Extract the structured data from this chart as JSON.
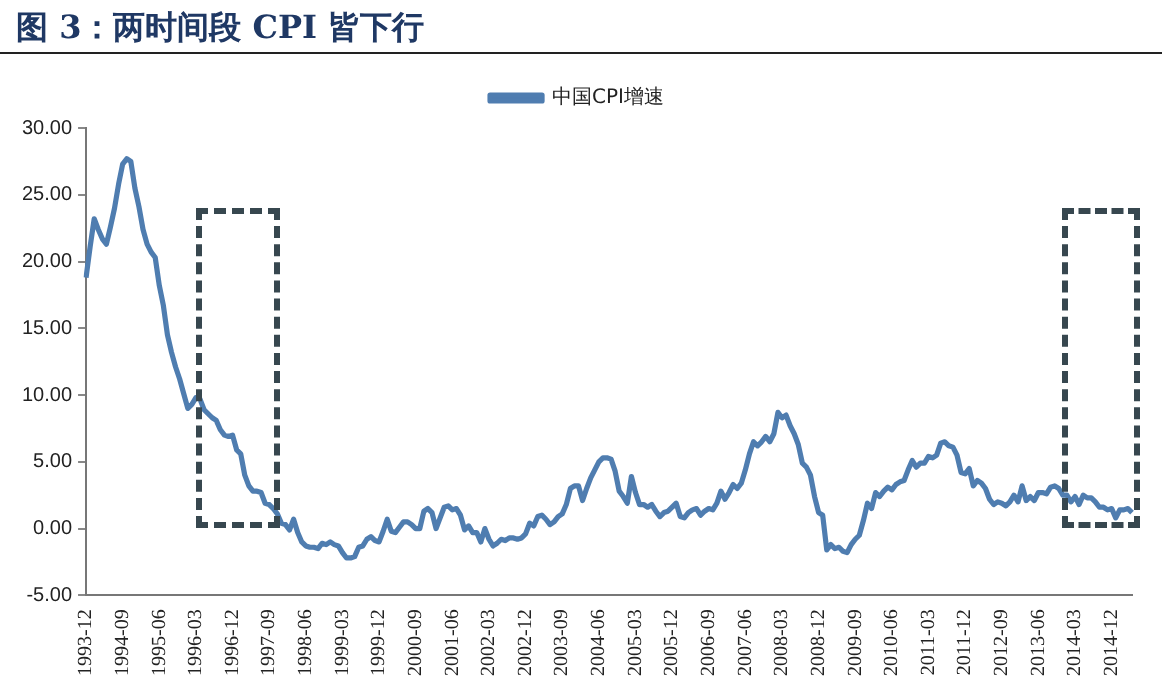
{
  "chart_data": {
    "type": "line",
    "title": "图 3：两时间段 CPI 皆下行",
    "legend": "top",
    "marker": "none",
    "line_style": "solid",
    "grid": false,
    "categories": [
      "1993-12",
      null,
      null,
      null,
      null,
      null,
      null,
      null,
      null,
      "1994-09",
      null,
      null,
      null,
      null,
      null,
      null,
      null,
      null,
      "1995-06",
      null,
      null,
      null,
      null,
      null,
      null,
      null,
      null,
      "1996-03",
      null,
      null,
      null,
      null,
      null,
      null,
      null,
      null,
      "1996-12",
      null,
      null,
      null,
      null,
      null,
      null,
      null,
      null,
      "1997-09",
      null,
      null,
      null,
      null,
      null,
      null,
      null,
      null,
      "1998-06",
      null,
      null,
      null,
      null,
      null,
      null,
      null,
      null,
      "1999-03",
      null,
      null,
      null,
      null,
      null,
      null,
      null,
      null,
      "1999-12",
      null,
      null,
      null,
      null,
      null,
      null,
      null,
      null,
      "2000-09",
      null,
      null,
      null,
      null,
      null,
      null,
      null,
      null,
      "2001-06",
      null,
      null,
      null,
      null,
      null,
      null,
      null,
      null,
      "2002-03",
      null,
      null,
      null,
      null,
      null,
      null,
      null,
      null,
      "2002-12",
      null,
      null,
      null,
      null,
      null,
      null,
      null,
      null,
      "2003-09",
      null,
      null,
      null,
      null,
      null,
      null,
      null,
      null,
      "2004-06",
      null,
      null,
      null,
      null,
      null,
      null,
      null,
      null,
      "2005-03",
      null,
      null,
      null,
      null,
      null,
      null,
      null,
      null,
      "2005-12",
      null,
      null,
      null,
      null,
      null,
      null,
      null,
      null,
      "2006-09",
      null,
      null,
      null,
      null,
      null,
      null,
      null,
      null,
      "2007-06",
      null,
      null,
      null,
      null,
      null,
      null,
      null,
      null,
      "2008-03",
      null,
      null,
      null,
      null,
      null,
      null,
      null,
      null,
      "2008-12",
      null,
      null,
      null,
      null,
      null,
      null,
      null,
      null,
      "2009-09",
      null,
      null,
      null,
      null,
      null,
      null,
      null,
      null,
      "2010-06",
      null,
      null,
      null,
      null,
      null,
      null,
      null,
      null,
      "2011-03",
      null,
      null,
      null,
      null,
      null,
      null,
      null,
      null,
      "2011-12",
      null,
      null,
      null,
      null,
      null,
      null,
      null,
      null,
      "2012-09",
      null,
      null,
      null,
      null,
      null,
      null,
      null,
      null,
      "2013-06",
      null,
      null,
      null,
      null,
      null,
      null,
      null,
      null,
      "2014-03",
      null,
      null,
      null,
      null,
      null,
      null,
      null,
      null,
      "2014-12",
      null,
      null,
      null,
      null,
      null
    ],
    "series": [
      {
        "name": "中国CPI增速",
        "color": "#4f7db0",
        "values": [
          18.8,
          21.1,
          23.2,
          22.4,
          21.7,
          21.3,
          22.6,
          24.0,
          25.8,
          27.3,
          27.7,
          27.5,
          25.5,
          24.1,
          22.4,
          21.3,
          20.7,
          20.3,
          18.2,
          16.7,
          14.5,
          13.2,
          12.1,
          11.2,
          10.1,
          9.0,
          9.3,
          9.8,
          9.7,
          8.9,
          8.6,
          8.3,
          8.1,
          7.4,
          7.0,
          6.9,
          7.0,
          5.9,
          5.6,
          4.0,
          3.2,
          2.8,
          2.8,
          2.7,
          1.9,
          1.8,
          1.5,
          1.1,
          0.4,
          0.3,
          -0.1,
          0.7,
          -0.3,
          -1.0,
          -1.3,
          -1.4,
          -1.4,
          -1.5,
          -1.1,
          -1.2,
          -1.0,
          -1.2,
          -1.3,
          -1.8,
          -2.2,
          -2.2,
          -2.1,
          -1.4,
          -1.3,
          -0.8,
          -0.6,
          -0.9,
          -1.0,
          -0.2,
          0.7,
          -0.2,
          -0.3,
          0.1,
          0.5,
          0.5,
          0.3,
          0.0,
          0.0,
          1.3,
          1.5,
          1.2,
          0.0,
          0.8,
          1.6,
          1.7,
          1.4,
          1.5,
          1.0,
          -0.1,
          0.2,
          -0.3,
          -0.3,
          -1.0,
          0.0,
          -0.8,
          -1.3,
          -1.1,
          -0.8,
          -0.9,
          -0.7,
          -0.7,
          -0.8,
          -0.7,
          -0.4,
          0.4,
          0.2,
          0.9,
          1.0,
          0.7,
          0.3,
          0.5,
          0.9,
          1.1,
          1.8,
          3.0,
          3.2,
          3.2,
          2.1,
          3.0,
          3.8,
          4.4,
          5.0,
          5.3,
          5.3,
          5.2,
          4.3,
          2.8,
          2.4,
          1.9,
          3.9,
          2.7,
          1.8,
          1.8,
          1.6,
          1.8,
          1.3,
          0.9,
          1.2,
          1.3,
          1.6,
          1.9,
          0.9,
          0.8,
          1.2,
          1.4,
          1.5,
          1.0,
          1.3,
          1.5,
          1.4,
          1.9,
          2.8,
          2.2,
          2.7,
          3.3,
          3.0,
          3.4,
          4.4,
          5.6,
          6.5,
          6.2,
          6.5,
          6.9,
          6.5,
          7.1,
          8.7,
          8.3,
          8.5,
          7.7,
          7.1,
          6.3,
          4.9,
          4.6,
          4.0,
          2.4,
          1.2,
          1.0,
          -1.6,
          -1.2,
          -1.5,
          -1.4,
          -1.7,
          -1.8,
          -1.2,
          -0.8,
          -0.5,
          0.6,
          1.9,
          1.5,
          2.7,
          2.4,
          2.8,
          3.1,
          2.9,
          3.3,
          3.5,
          3.6,
          4.4,
          5.1,
          4.6,
          4.9,
          4.9,
          5.4,
          5.3,
          5.5,
          6.4,
          6.5,
          6.2,
          6.1,
          5.5,
          4.2,
          4.1,
          4.5,
          3.2,
          3.6,
          3.4,
          3.0,
          2.2,
          1.8,
          2.0,
          1.9,
          1.7,
          2.0,
          2.5,
          2.0,
          3.2,
          2.1,
          2.4,
          2.1,
          2.7,
          2.7,
          2.6,
          3.1,
          3.2,
          3.0,
          2.5,
          2.5,
          2.0,
          2.4,
          1.8,
          2.5,
          2.3,
          2.3,
          2.0,
          1.6,
          1.6,
          1.4,
          1.5,
          0.8,
          1.4,
          1.4,
          1.5,
          1.2
        ]
      }
    ],
    "ylim": [
      -5,
      30
    ],
    "yticks": [
      {
        "value": -5,
        "label": "-5.00"
      },
      {
        "value": 0,
        "label": "0.00"
      },
      {
        "value": 5,
        "label": "5.00"
      },
      {
        "value": 10,
        "label": "10.00"
      },
      {
        "value": 15,
        "label": "15.00"
      },
      {
        "value": 20,
        "label": "20.00"
      },
      {
        "value": 25,
        "label": "25.00"
      },
      {
        "value": 30,
        "label": "30.00"
      }
    ]
  }
}
